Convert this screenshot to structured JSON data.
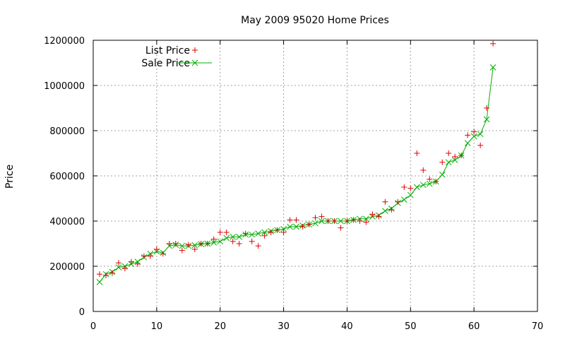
{
  "chart_data": {
    "type": "scatter",
    "title": "May 2009 95020 Home Prices",
    "xlabel": "",
    "ylabel": "Price",
    "xlim": [
      0,
      70
    ],
    "ylim": [
      0,
      1200000
    ],
    "x_ticks": [
      "0",
      "10",
      "20",
      "30",
      "40",
      "50",
      "60",
      "70"
    ],
    "y_ticks": [
      "0",
      "200000",
      "400000",
      "600000",
      "800000",
      "1000000",
      "1200000"
    ],
    "grid": true,
    "legend_position": "top-left",
    "x": [
      1,
      2,
      3,
      4,
      5,
      6,
      7,
      8,
      9,
      10,
      11,
      12,
      13,
      14,
      15,
      16,
      17,
      18,
      19,
      20,
      21,
      22,
      23,
      24,
      25,
      26,
      27,
      28,
      29,
      30,
      31,
      32,
      33,
      34,
      35,
      36,
      37,
      38,
      39,
      40,
      41,
      42,
      43,
      44,
      45,
      46,
      47,
      48,
      49,
      50,
      51,
      52,
      53,
      54,
      55,
      56,
      57,
      58,
      59,
      60,
      61,
      62,
      63
    ],
    "series": [
      {
        "name": "List Price",
        "marker": "plus",
        "color": "#e00000",
        "values": [
          165000,
          160000,
          170000,
          215000,
          190000,
          220000,
          210000,
          245000,
          245000,
          275000,
          255000,
          300000,
          300000,
          270000,
          295000,
          275000,
          300000,
          300000,
          320000,
          350000,
          350000,
          310000,
          300000,
          345000,
          310000,
          290000,
          335000,
          350000,
          360000,
          350000,
          405000,
          405000,
          375000,
          385000,
          415000,
          420000,
          400000,
          400000,
          370000,
          400000,
          405000,
          400000,
          395000,
          430000,
          420000,
          485000,
          450000,
          485000,
          550000,
          545000,
          700000,
          625000,
          585000,
          575000,
          660000,
          700000,
          685000,
          690000,
          780000,
          795000,
          735000,
          900000,
          1185000
        ]
      },
      {
        "name": "Sale Price",
        "marker": "cross",
        "color": "#00b000",
        "values": [
          130000,
          165000,
          175000,
          195000,
          200000,
          210000,
          220000,
          240000,
          255000,
          265000,
          260000,
          290000,
          295000,
          290000,
          290000,
          293000,
          298000,
          300000,
          305000,
          310000,
          325000,
          330000,
          330000,
          340000,
          340000,
          345000,
          350000,
          355000,
          360000,
          365000,
          375000,
          375000,
          380000,
          385000,
          390000,
          400000,
          400000,
          400000,
          400000,
          400000,
          405000,
          410000,
          410000,
          420000,
          425000,
          445000,
          455000,
          480000,
          495000,
          515000,
          550000,
          560000,
          565000,
          575000,
          605000,
          660000,
          670000,
          690000,
          745000,
          775000,
          785000,
          850000,
          1080000
        ]
      }
    ]
  }
}
